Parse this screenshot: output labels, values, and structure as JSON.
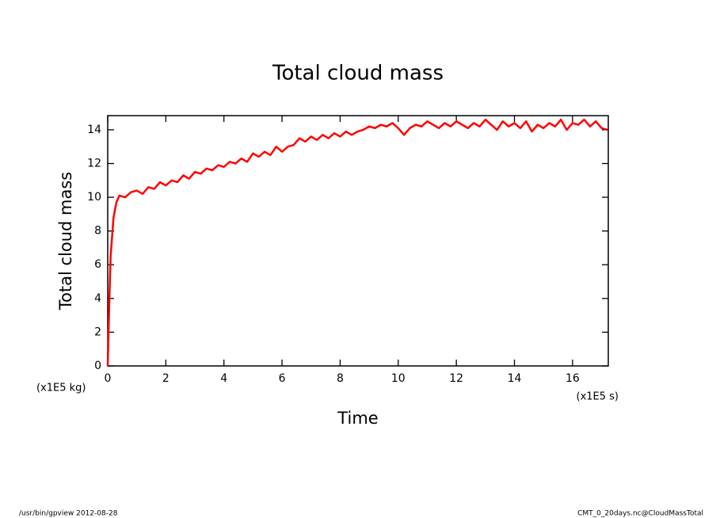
{
  "chart_data": {
    "type": "line",
    "title": "Total cloud mass",
    "y_label": "Total cloud mass",
    "x_label": "Time",
    "y_unit": "(x1E5 kg)",
    "x_unit": "(x1E5 s)",
    "footer_left": "/usr/bin/gpview  2012-08-28",
    "footer_right": "CMT_0_20days.nc@CloudMassTotal",
    "xlim": [
      0,
      17.23
    ],
    "ylim": [
      0,
      14.84
    ],
    "xticks": [
      0,
      2,
      4,
      6,
      8,
      10,
      12,
      14,
      16
    ],
    "yticks": [
      0,
      2,
      4,
      6,
      8,
      10,
      12,
      14
    ],
    "x": [
      0,
      0.05,
      0.1,
      0.2,
      0.3,
      0.4,
      0.6,
      0.8,
      1.0,
      1.2,
      1.4,
      1.6,
      1.8,
      2.0,
      2.2,
      2.4,
      2.6,
      2.8,
      3.0,
      3.2,
      3.4,
      3.6,
      3.8,
      4.0,
      4.2,
      4.4,
      4.6,
      4.8,
      5.0,
      5.2,
      5.4,
      5.6,
      5.8,
      6.0,
      6.2,
      6.4,
      6.6,
      6.8,
      7.0,
      7.2,
      7.4,
      7.6,
      7.8,
      8.0,
      8.2,
      8.4,
      8.6,
      8.8,
      9.0,
      9.2,
      9.4,
      9.6,
      9.8,
      10.0,
      10.2,
      10.4,
      10.6,
      10.8,
      11.0,
      11.2,
      11.4,
      11.6,
      11.8,
      12.0,
      12.2,
      12.4,
      12.6,
      12.8,
      13.0,
      13.2,
      13.4,
      13.6,
      13.8,
      14.0,
      14.2,
      14.4,
      14.6,
      14.8,
      15.0,
      15.2,
      15.4,
      15.6,
      15.8,
      16.0,
      16.2,
      16.4,
      16.6,
      16.8,
      17.0,
      17.2
    ],
    "series": [
      {
        "color": "#ff0000",
        "values": [
          0,
          3.5,
          6.5,
          8.8,
          9.7,
          10.1,
          10.0,
          10.3,
          10.4,
          10.2,
          10.6,
          10.5,
          10.9,
          10.7,
          11.0,
          10.9,
          11.3,
          11.1,
          11.5,
          11.4,
          11.7,
          11.6,
          11.9,
          11.8,
          12.1,
          12.0,
          12.3,
          12.1,
          12.6,
          12.4,
          12.7,
          12.5,
          13.0,
          12.7,
          13.0,
          13.1,
          13.5,
          13.3,
          13.6,
          13.4,
          13.7,
          13.5,
          13.8,
          13.6,
          13.9,
          13.7,
          13.9,
          14.0,
          14.2,
          14.1,
          14.3,
          14.2,
          14.4,
          14.1,
          13.7,
          14.1,
          14.3,
          14.2,
          14.5,
          14.3,
          14.1,
          14.4,
          14.2,
          14.5,
          14.3,
          14.1,
          14.4,
          14.2,
          14.6,
          14.3,
          14.0,
          14.5,
          14.2,
          14.4,
          14.1,
          14.5,
          13.9,
          14.3,
          14.1,
          14.4,
          14.2,
          14.6,
          14.0,
          14.4,
          14.3,
          14.6,
          14.2,
          14.5,
          14.1,
          14.0
        ]
      }
    ]
  }
}
